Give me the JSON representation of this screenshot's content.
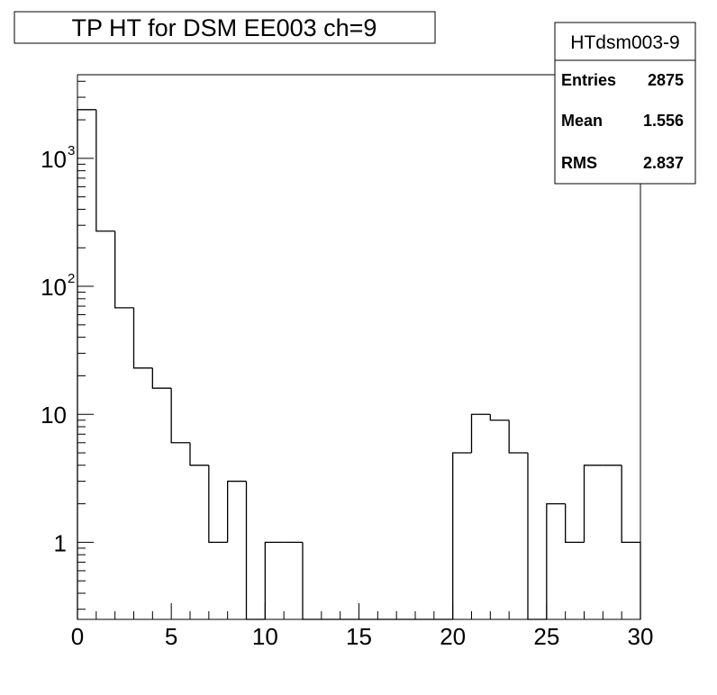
{
  "title": "TP HT for DSM EE003 ch=9",
  "stats_box": {
    "name": "HTdsm003-9",
    "entries_label": "Entries",
    "entries_value": "2875",
    "mean_label": "Mean",
    "mean_value": "1.556",
    "rms_label": "RMS",
    "rms_value": "2.837"
  },
  "chart_data": {
    "type": "bar",
    "style": "step-histogram",
    "title": "TP HT for DSM EE003 ch=9",
    "xlabel": "",
    "ylabel": "",
    "xlim": [
      0,
      30
    ],
    "ylim": [
      0.25,
      4500
    ],
    "y_log_scale": true,
    "bin_width": 1,
    "bins": [
      {
        "low": 0,
        "high": 1,
        "value": 2400
      },
      {
        "low": 1,
        "high": 2,
        "value": 270
      },
      {
        "low": 2,
        "high": 3,
        "value": 68
      },
      {
        "low": 3,
        "high": 4,
        "value": 23
      },
      {
        "low": 4,
        "high": 5,
        "value": 16
      },
      {
        "low": 5,
        "high": 6,
        "value": 6
      },
      {
        "low": 6,
        "high": 7,
        "value": 4
      },
      {
        "low": 7,
        "high": 8,
        "value": 1
      },
      {
        "low": 8,
        "high": 9,
        "value": 3
      },
      {
        "low": 9,
        "high": 10,
        "value": 0
      },
      {
        "low": 10,
        "high": 11,
        "value": 1
      },
      {
        "low": 11,
        "high": 12,
        "value": 1
      },
      {
        "low": 12,
        "high": 13,
        "value": 0
      },
      {
        "low": 13,
        "high": 14,
        "value": 0
      },
      {
        "low": 14,
        "high": 15,
        "value": 0
      },
      {
        "low": 15,
        "high": 16,
        "value": 0
      },
      {
        "low": 16,
        "high": 17,
        "value": 0
      },
      {
        "low": 17,
        "high": 18,
        "value": 0
      },
      {
        "low": 18,
        "high": 19,
        "value": 0
      },
      {
        "low": 19,
        "high": 20,
        "value": 0
      },
      {
        "low": 20,
        "high": 21,
        "value": 5
      },
      {
        "low": 21,
        "high": 22,
        "value": 10
      },
      {
        "low": 22,
        "high": 23,
        "value": 9
      },
      {
        "low": 23,
        "high": 24,
        "value": 5
      },
      {
        "low": 24,
        "high": 25,
        "value": 0
      },
      {
        "low": 25,
        "high": 26,
        "value": 2
      },
      {
        "low": 26,
        "high": 27,
        "value": 1
      },
      {
        "low": 27,
        "high": 28,
        "value": 4
      },
      {
        "low": 28,
        "high": 29,
        "value": 4
      },
      {
        "low": 29,
        "high": 30,
        "value": 1
      }
    ],
    "x_ticks": [
      {
        "value": 0,
        "label": "0"
      },
      {
        "value": 5,
        "label": "5"
      },
      {
        "value": 10,
        "label": "10"
      },
      {
        "value": 15,
        "label": "15"
      },
      {
        "value": 20,
        "label": "20"
      },
      {
        "value": 25,
        "label": "25"
      },
      {
        "value": 30,
        "label": "30"
      }
    ],
    "y_ticks": [
      {
        "value": 1,
        "label": "1",
        "exp": ""
      },
      {
        "value": 10,
        "label": "10",
        "exp": ""
      },
      {
        "value": 100,
        "label": "10",
        "exp": "2"
      },
      {
        "value": 1000,
        "label": "10",
        "exp": "3"
      }
    ],
    "grid": false,
    "legend": "none",
    "colors": {
      "line": "#000000",
      "background": "#ffffff"
    }
  }
}
